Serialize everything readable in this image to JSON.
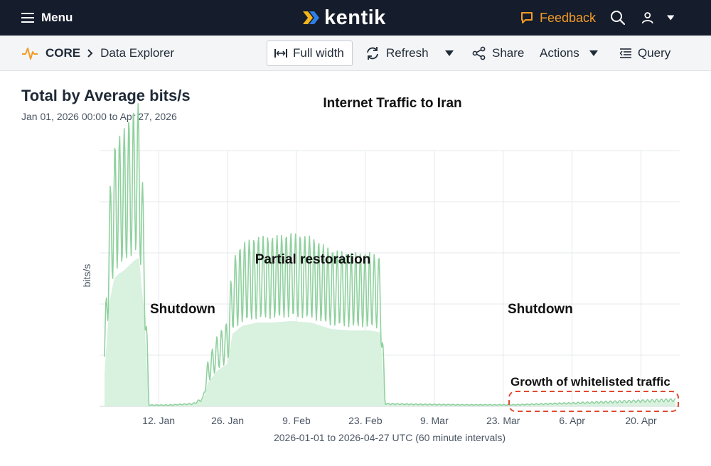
{
  "header": {
    "menu_label": "Menu",
    "logo_text": "kentik",
    "feedback_label": "Feedback"
  },
  "toolbar": {
    "crumb_root": "CORE",
    "crumb_page": "Data Explorer",
    "full_width_label": "Full width",
    "refresh_label": "Refresh",
    "share_label": "Share",
    "actions_label": "Actions",
    "query_label": "Query"
  },
  "panel": {
    "title": "Total by Average bits/s",
    "date_range": "Jan 01, 2026 00:00 to Apr 27, 2026 "
  },
  "colors": {
    "topbar": "#151c2b",
    "accent": "#f29b26",
    "series": "#8fd19e",
    "series_fill": "#d9f1df",
    "highlight": "#e0492f"
  },
  "icons": [
    "menu-icon",
    "kentik-logo-icon",
    "feedback-icon",
    "search-icon",
    "user-icon",
    "caret-down-icon",
    "pulse-icon",
    "chevron-right-icon",
    "full-width-icon",
    "refresh-icon",
    "share-icon",
    "filter-lines-icon"
  ],
  "chart_data": {
    "type": "area",
    "title": "Internet Traffic to Iran",
    "ylabel": "bits/s",
    "xlabel": "2026-01-01 to 2026-04-27 UTC (60 minute intervals)",
    "x_ticks": [
      "12. Jan",
      "26. Jan",
      "9. Feb",
      "23. Feb",
      "9. Mar",
      "23. Mar",
      "6. Apr",
      "20. Apr"
    ],
    "x_range": [
      "2026-01-01",
      "2026-04-27"
    ],
    "y_range": [
      0,
      100
    ],
    "grid": true,
    "annotations": {
      "shutdown_1": "Shutdown",
      "partial_restoration": "Partial restoration",
      "shutdown_2": "Shutdown",
      "whitelist": "Growth of whitelisted traffic"
    },
    "series": [
      {
        "values_note_free": true,
        "points": [
          [
            "2026-01-01",
            20
          ],
          [
            "2026-01-02",
            65
          ],
          [
            "2026-01-03",
            80
          ],
          [
            "2026-01-04",
            83
          ],
          [
            "2026-01-05",
            85
          ],
          [
            "2026-01-06",
            88
          ],
          [
            "2026-01-07",
            91
          ],
          [
            "2026-01-08",
            93
          ],
          [
            "2026-01-09",
            60
          ],
          [
            "2026-01-10",
            0.5
          ],
          [
            "2026-01-14",
            0.5
          ],
          [
            "2026-01-19",
            1
          ],
          [
            "2026-01-21",
            3
          ],
          [
            "2026-01-22",
            14
          ],
          [
            "2026-01-24",
            22
          ],
          [
            "2026-01-26",
            26
          ],
          [
            "2026-01-27",
            45
          ],
          [
            "2026-01-29",
            50
          ],
          [
            "2026-02-01",
            52
          ],
          [
            "2026-02-04",
            52
          ],
          [
            "2026-02-08",
            53
          ],
          [
            "2026-02-12",
            52
          ],
          [
            "2026-02-16",
            48
          ],
          [
            "2026-02-20",
            47
          ],
          [
            "2026-02-24",
            47
          ],
          [
            "2026-02-26",
            46
          ],
          [
            "2026-02-27",
            1
          ],
          [
            "2026-03-05",
            0.8
          ],
          [
            "2026-03-15",
            0.6
          ],
          [
            "2026-03-25",
            0.6
          ],
          [
            "2026-04-01",
            1
          ],
          [
            "2026-04-10",
            1.5
          ],
          [
            "2026-04-18",
            2
          ],
          [
            "2026-04-27",
            2.5
          ]
        ]
      }
    ]
  }
}
